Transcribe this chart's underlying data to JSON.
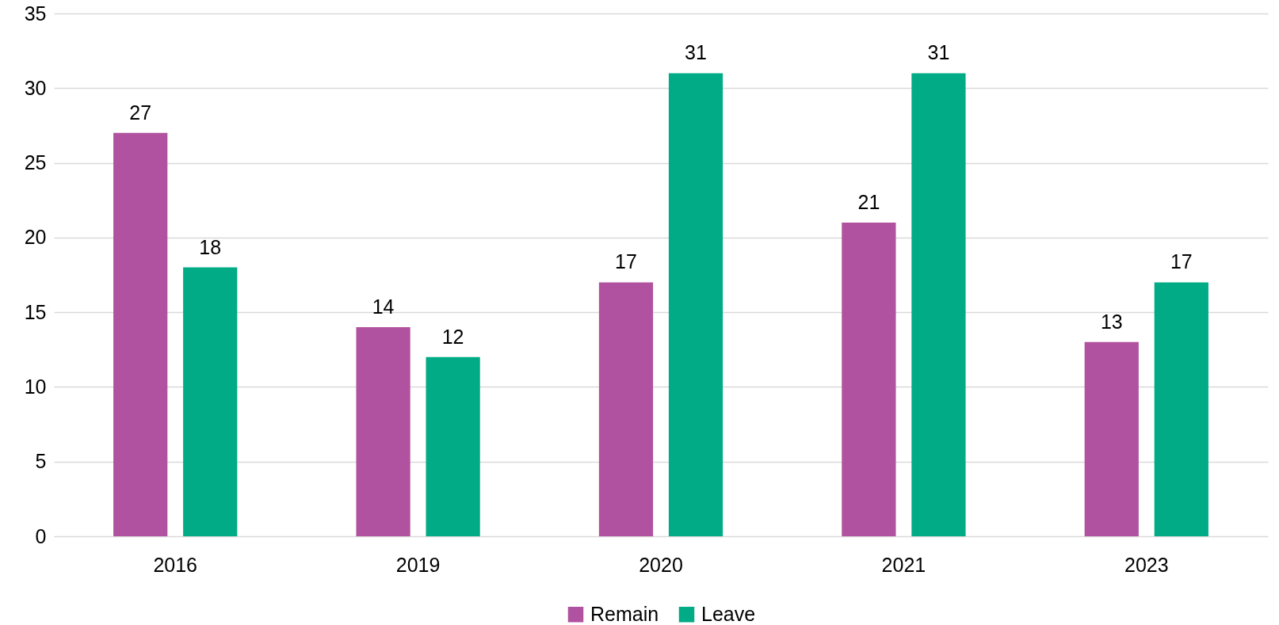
{
  "chart_data": {
    "type": "bar",
    "categories": [
      "2016",
      "2019",
      "2020",
      "2021",
      "2023"
    ],
    "series": [
      {
        "name": "Remain",
        "color": "#b0529f",
        "values": [
          27,
          14,
          17,
          21,
          13
        ]
      },
      {
        "name": "Leave",
        "color": "#00ab85",
        "values": [
          18,
          12,
          31,
          31,
          17
        ]
      }
    ],
    "ylim": [
      0,
      35
    ],
    "yticks": [
      0,
      5,
      10,
      15,
      20,
      25,
      30,
      35
    ],
    "grid": "y",
    "legend": "bottom",
    "data_labels": true
  }
}
